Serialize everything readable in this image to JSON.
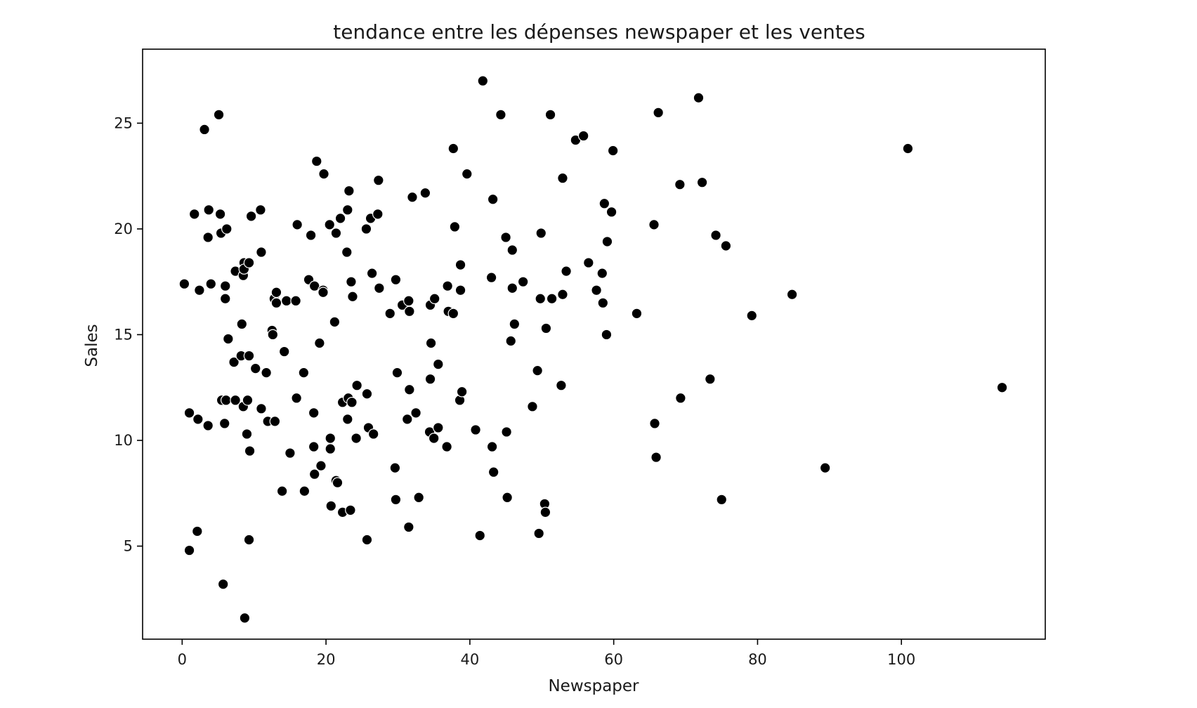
{
  "chart_data": {
    "type": "scatter",
    "title": "tendance entre les dépenses newspaper et les ventes",
    "xlabel": "Newspaper",
    "ylabel": "Sales",
    "xlim": [
      -5.5,
      120
    ],
    "ylim": [
      0.6,
      28.5
    ],
    "xticks": [
      0,
      20,
      40,
      60,
      80,
      100
    ],
    "yticks": [
      5,
      10,
      15,
      20,
      25
    ],
    "grid": false,
    "legend": "none",
    "marker_color": "#000000",
    "points": [
      [
        0.3,
        17.4
      ],
      [
        1.0,
        11.3
      ],
      [
        1.0,
        4.8
      ],
      [
        1.7,
        20.7
      ],
      [
        2.1,
        5.7
      ],
      [
        2.2,
        11.0
      ],
      [
        2.4,
        17.1
      ],
      [
        3.1,
        24.7
      ],
      [
        3.6,
        19.6
      ],
      [
        3.6,
        10.7
      ],
      [
        3.7,
        20.9
      ],
      [
        4.0,
        17.4
      ],
      [
        5.1,
        25.4
      ],
      [
        5.3,
        20.7
      ],
      [
        5.4,
        19.8
      ],
      [
        5.5,
        11.9
      ],
      [
        5.7,
        3.2
      ],
      [
        5.9,
        10.8
      ],
      [
        6.0,
        17.3
      ],
      [
        6.0,
        16.7
      ],
      [
        6.1,
        11.9
      ],
      [
        6.2,
        20.0
      ],
      [
        6.4,
        14.8
      ],
      [
        7.2,
        13.7
      ],
      [
        7.4,
        18.0
      ],
      [
        7.4,
        11.9
      ],
      [
        8.2,
        14.0
      ],
      [
        8.3,
        15.5
      ],
      [
        8.5,
        11.6
      ],
      [
        8.5,
        17.8
      ],
      [
        8.6,
        18.4
      ],
      [
        8.6,
        18.1
      ],
      [
        8.7,
        1.6
      ],
      [
        9.0,
        10.3
      ],
      [
        9.1,
        11.9
      ],
      [
        9.3,
        18.4
      ],
      [
        9.3,
        14.0
      ],
      [
        9.3,
        5.3
      ],
      [
        9.4,
        9.5
      ],
      [
        9.6,
        20.6
      ],
      [
        10.2,
        13.4
      ],
      [
        10.9,
        20.9
      ],
      [
        11.0,
        18.9
      ],
      [
        11.0,
        11.5
      ],
      [
        11.7,
        13.2
      ],
      [
        11.9,
        10.9
      ],
      [
        12.5,
        15.2
      ],
      [
        12.6,
        15.0
      ],
      [
        12.8,
        16.7
      ],
      [
        12.9,
        10.9
      ],
      [
        13.1,
        17.0
      ],
      [
        13.1,
        16.5
      ],
      [
        13.9,
        7.6
      ],
      [
        14.2,
        14.2
      ],
      [
        14.5,
        16.6
      ],
      [
        15.0,
        9.4
      ],
      [
        15.8,
        16.6
      ],
      [
        15.9,
        12.0
      ],
      [
        16.0,
        20.2
      ],
      [
        16.9,
        13.2
      ],
      [
        17.0,
        7.6
      ],
      [
        17.6,
        17.6
      ],
      [
        17.9,
        19.7
      ],
      [
        18.3,
        11.3
      ],
      [
        18.3,
        9.7
      ],
      [
        18.4,
        17.3
      ],
      [
        18.4,
        8.4
      ],
      [
        18.7,
        23.2
      ],
      [
        19.1,
        14.6
      ],
      [
        19.3,
        8.8
      ],
      [
        19.6,
        17.1
      ],
      [
        19.6,
        17.0
      ],
      [
        19.7,
        22.6
      ],
      [
        20.5,
        20.2
      ],
      [
        20.6,
        10.1
      ],
      [
        20.6,
        9.6
      ],
      [
        20.7,
        6.9
      ],
      [
        21.2,
        15.6
      ],
      [
        21.4,
        19.8
      ],
      [
        21.4,
        8.1
      ],
      [
        21.6,
        8.0
      ],
      [
        22.0,
        20.5
      ],
      [
        22.3,
        6.6
      ],
      [
        22.3,
        11.8
      ],
      [
        22.9,
        18.9
      ],
      [
        23.0,
        20.9
      ],
      [
        23.0,
        11.0
      ],
      [
        23.1,
        12.0
      ],
      [
        23.2,
        21.8
      ],
      [
        23.4,
        6.7
      ],
      [
        23.5,
        17.5
      ],
      [
        23.6,
        11.8
      ],
      [
        23.7,
        16.8
      ],
      [
        24.2,
        10.1
      ],
      [
        24.3,
        12.6
      ],
      [
        25.6,
        20.0
      ],
      [
        25.7,
        12.2
      ],
      [
        25.7,
        5.3
      ],
      [
        25.9,
        10.6
      ],
      [
        26.2,
        20.5
      ],
      [
        26.4,
        17.9
      ],
      [
        26.6,
        10.3
      ],
      [
        27.2,
        20.7
      ],
      [
        27.3,
        22.3
      ],
      [
        27.4,
        17.2
      ],
      [
        28.9,
        16.0
      ],
      [
        29.6,
        8.7
      ],
      [
        29.7,
        17.6
      ],
      [
        29.7,
        7.2
      ],
      [
        29.9,
        13.2
      ],
      [
        30.6,
        16.4
      ],
      [
        31.3,
        11.0
      ],
      [
        31.5,
        16.6
      ],
      [
        31.5,
        5.9
      ],
      [
        31.6,
        12.4
      ],
      [
        31.6,
        16.1
      ],
      [
        32.0,
        21.5
      ],
      [
        32.5,
        11.3
      ],
      [
        32.9,
        7.3
      ],
      [
        33.8,
        21.7
      ],
      [
        34.4,
        10.4
      ],
      [
        34.5,
        16.4
      ],
      [
        34.5,
        12.9
      ],
      [
        34.6,
        14.6
      ],
      [
        35.0,
        10.1
      ],
      [
        35.1,
        16.7
      ],
      [
        35.6,
        13.6
      ],
      [
        35.6,
        10.6
      ],
      [
        36.8,
        9.7
      ],
      [
        36.9,
        17.3
      ],
      [
        37.0,
        16.1
      ],
      [
        37.7,
        23.8
      ],
      [
        37.7,
        16.0
      ],
      [
        37.9,
        20.1
      ],
      [
        38.6,
        11.9
      ],
      [
        38.7,
        17.1
      ],
      [
        38.7,
        18.3
      ],
      [
        38.9,
        12.3
      ],
      [
        39.6,
        22.6
      ],
      [
        40.8,
        10.5
      ],
      [
        41.4,
        5.5
      ],
      [
        41.8,
        27.0
      ],
      [
        43.0,
        17.7
      ],
      [
        43.1,
        9.7
      ],
      [
        43.2,
        21.4
      ],
      [
        43.3,
        8.5
      ],
      [
        44.3,
        25.4
      ],
      [
        45.0,
        19.6
      ],
      [
        45.1,
        10.4
      ],
      [
        45.2,
        7.3
      ],
      [
        45.7,
        14.7
      ],
      [
        45.9,
        17.2
      ],
      [
        45.9,
        19.0
      ],
      [
        46.2,
        15.5
      ],
      [
        47.4,
        17.5
      ],
      [
        48.7,
        11.6
      ],
      [
        49.4,
        13.3
      ],
      [
        49.6,
        5.6
      ],
      [
        49.8,
        16.7
      ],
      [
        49.9,
        19.8
      ],
      [
        50.4,
        7.0
      ],
      [
        50.5,
        6.6
      ],
      [
        50.6,
        15.3
      ],
      [
        51.2,
        25.4
      ],
      [
        51.4,
        16.7
      ],
      [
        52.7,
        12.6
      ],
      [
        52.9,
        16.9
      ],
      [
        52.9,
        22.4
      ],
      [
        53.4,
        18.0
      ],
      [
        54.7,
        24.2
      ],
      [
        55.8,
        24.4
      ],
      [
        56.5,
        18.4
      ],
      [
        57.6,
        17.1
      ],
      [
        58.4,
        17.9
      ],
      [
        58.5,
        16.5
      ],
      [
        58.7,
        21.2
      ],
      [
        59.0,
        15.0
      ],
      [
        59.1,
        19.4
      ],
      [
        59.7,
        20.8
      ],
      [
        59.9,
        23.7
      ],
      [
        63.2,
        16.0
      ],
      [
        65.6,
        20.2
      ],
      [
        65.7,
        10.8
      ],
      [
        65.9,
        9.2
      ],
      [
        66.2,
        25.5
      ],
      [
        69.2,
        22.1
      ],
      [
        69.3,
        12.0
      ],
      [
        71.8,
        26.2
      ],
      [
        72.3,
        22.2
      ],
      [
        73.4,
        12.9
      ],
      [
        74.2,
        19.7
      ],
      [
        75.0,
        7.2
      ],
      [
        75.6,
        19.2
      ],
      [
        79.2,
        15.9
      ],
      [
        84.8,
        16.9
      ],
      [
        89.4,
        8.7
      ],
      [
        100.9,
        23.8
      ],
      [
        114.0,
        12.5
      ]
    ]
  }
}
